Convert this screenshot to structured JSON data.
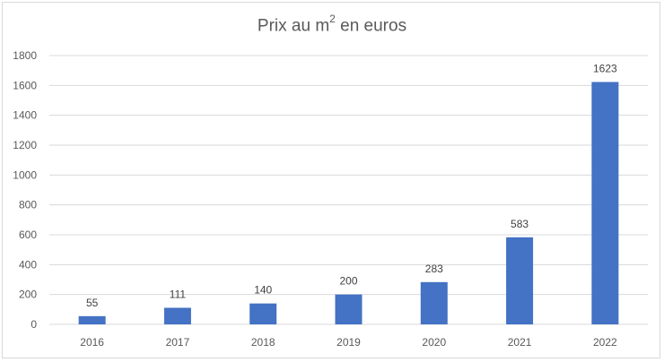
{
  "chart_data": {
    "type": "bar",
    "title_main": "Prix au m",
    "title_sup": "2",
    "title_tail": " en euros",
    "categories": [
      "2016",
      "2017",
      "2018",
      "2019",
      "2020",
      "2021",
      "2022"
    ],
    "values": [
      55,
      111,
      140,
      200,
      283,
      583,
      1623
    ],
    "data_labels": [
      "55",
      "111",
      "140",
      "200",
      "283",
      "583",
      "1623"
    ],
    "ylim": [
      0,
      1800
    ],
    "y_ticks": [
      0,
      200,
      400,
      600,
      800,
      1000,
      1200,
      1400,
      1600,
      1800
    ],
    "grid": true,
    "bar_color": "#4472c4",
    "grid_color": "#d9d9d9",
    "legend": "none"
  }
}
